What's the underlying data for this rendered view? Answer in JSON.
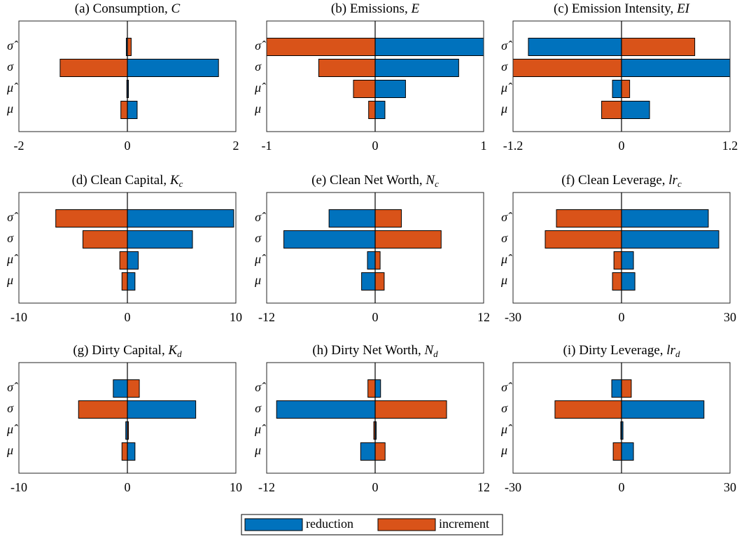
{
  "chart_data": [
    {
      "type": "bar",
      "title": "(a) Consumption, ",
      "title_symbol": "C",
      "categories": [
        "σ̂",
        "σ",
        "μ̂",
        "μ"
      ],
      "series": [
        {
          "name": "reduction",
          "color": "#0072BD",
          "values": [
            -0.02,
            1.68,
            0.01,
            0.18
          ]
        },
        {
          "name": "increment",
          "color": "#D95319",
          "values": [
            0.07,
            -1.24,
            -0.01,
            -0.12
          ]
        }
      ],
      "xlim": [
        -2,
        2
      ],
      "xticks": [
        -2,
        0,
        2
      ]
    },
    {
      "type": "bar",
      "title": "(b) Emissions, ",
      "title_symbol": "E",
      "categories": [
        "σ̂",
        "σ",
        "μ̂",
        "μ"
      ],
      "series": [
        {
          "name": "reduction",
          "color": "#0072BD",
          "values": [
            1.0,
            0.77,
            0.28,
            0.09
          ]
        },
        {
          "name": "increment",
          "color": "#D95319",
          "values": [
            -1.0,
            -0.52,
            -0.2,
            -0.06
          ]
        }
      ],
      "xlim": [
        -1,
        1
      ],
      "xticks": [
        -1,
        0,
        1
      ]
    },
    {
      "type": "bar",
      "title": "(c) Emission Intensity, ",
      "title_symbol": "EI",
      "categories": [
        "σ̂",
        "σ",
        "μ̂",
        "μ"
      ],
      "series": [
        {
          "name": "reduction",
          "color": "#0072BD",
          "values": [
            -1.03,
            1.2,
            -0.1,
            0.31
          ]
        },
        {
          "name": "increment",
          "color": "#D95319",
          "values": [
            0.81,
            -1.2,
            0.09,
            -0.22
          ]
        }
      ],
      "xlim": [
        -1.2,
        1.2
      ],
      "xticks": [
        -1.2,
        0,
        1.2
      ]
    },
    {
      "type": "bar",
      "title": "(d) Clean Capital, ",
      "title_symbol": "K",
      "title_subscript": "c",
      "categories": [
        "σ̂",
        "σ",
        "μ̂",
        "μ"
      ],
      "series": [
        {
          "name": "reduction",
          "color": "#0072BD",
          "values": [
            9.8,
            6.0,
            1.0,
            0.7
          ]
        },
        {
          "name": "increment",
          "color": "#D95319",
          "values": [
            -6.6,
            -4.1,
            -0.7,
            -0.5
          ]
        }
      ],
      "xlim": [
        -10,
        10
      ],
      "xticks": [
        -10,
        0,
        10
      ]
    },
    {
      "type": "bar",
      "title": "(e) Clean Net Worth, ",
      "title_symbol": "N",
      "title_subscript": "c",
      "categories": [
        "σ̂",
        "σ",
        "μ̂",
        "μ"
      ],
      "series": [
        {
          "name": "reduction",
          "color": "#0072BD",
          "values": [
            -5.1,
            -10.1,
            -0.85,
            -1.5
          ]
        },
        {
          "name": "increment",
          "color": "#D95319",
          "values": [
            2.9,
            7.3,
            0.55,
            1.0
          ]
        }
      ],
      "xlim": [
        -12,
        12
      ],
      "xticks": [
        -12,
        0,
        12
      ]
    },
    {
      "type": "bar",
      "title": "(f) Clean Leverage, ",
      "title_symbol": "lr",
      "title_subscript": "c",
      "categories": [
        "σ̂",
        "σ",
        "μ̂",
        "μ"
      ],
      "series": [
        {
          "name": "reduction",
          "color": "#0072BD",
          "values": [
            24,
            26.9,
            3.3,
            3.7
          ]
        },
        {
          "name": "increment",
          "color": "#D95319",
          "values": [
            -18,
            -21.1,
            -2.1,
            -2.5
          ]
        }
      ],
      "xlim": [
        -30,
        30
      ],
      "xticks": [
        -30,
        0,
        30
      ]
    },
    {
      "type": "bar",
      "title": "(g) Dirty Capital, ",
      "title_symbol": "K",
      "title_subscript": "d",
      "categories": [
        "σ̂",
        "σ",
        "μ̂",
        "μ"
      ],
      "series": [
        {
          "name": "reduction",
          "color": "#0072BD",
          "values": [
            -1.3,
            6.3,
            -0.15,
            0.7
          ]
        },
        {
          "name": "increment",
          "color": "#D95319",
          "values": [
            1.1,
            -4.5,
            0.1,
            -0.5
          ]
        }
      ],
      "xlim": [
        -10,
        10
      ],
      "xticks": [
        -10,
        0,
        10
      ]
    },
    {
      "type": "bar",
      "title": "(h) Dirty Net Worth, ",
      "title_symbol": "N",
      "title_subscript": "d",
      "categories": [
        "σ̂",
        "σ",
        "μ̂",
        "μ"
      ],
      "series": [
        {
          "name": "reduction",
          "color": "#0072BD",
          "values": [
            0.6,
            -10.9,
            0.08,
            -1.6
          ]
        },
        {
          "name": "increment",
          "color": "#D95319",
          "values": [
            -0.8,
            7.9,
            -0.15,
            1.1
          ]
        }
      ],
      "xlim": [
        -12,
        12
      ],
      "xticks": [
        -12,
        0,
        12
      ]
    },
    {
      "type": "bar",
      "title": "(i) Dirty Leverage, ",
      "title_symbol": "lr",
      "title_subscript": "d",
      "categories": [
        "σ̂",
        "σ",
        "μ̂",
        "μ"
      ],
      "series": [
        {
          "name": "reduction",
          "color": "#0072BD",
          "values": [
            -2.7,
            22.8,
            0.4,
            3.3
          ]
        },
        {
          "name": "increment",
          "color": "#D95319",
          "values": [
            2.7,
            -18.4,
            -0.2,
            -2.3
          ]
        }
      ],
      "xlim": [
        -30,
        30
      ],
      "xticks": [
        -30,
        0,
        30
      ]
    }
  ]
}
